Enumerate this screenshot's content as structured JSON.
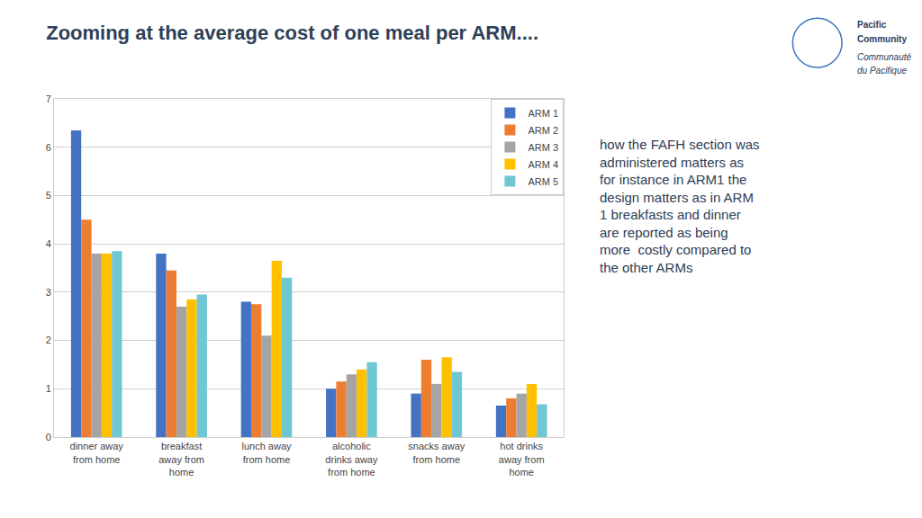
{
  "chart_data": {
    "type": "bar",
    "title": "Zooming at the average cost of one meal per ARM....",
    "categories": [
      "dinner away\nfrom home",
      "breakfast\naway from\nhome",
      "lunch away\nfrom home",
      "alcoholic\ndrinks away\nfrom home",
      "snacks away\nfrom home",
      "hot drinks\naway from\nhome"
    ],
    "series": [
      {
        "name": "ARM 1",
        "color": "#4472c4",
        "values": [
          6.35,
          3.8,
          2.8,
          1.0,
          0.9,
          0.65
        ]
      },
      {
        "name": "ARM 2",
        "color": "#ed7d31",
        "values": [
          4.5,
          3.45,
          2.75,
          1.15,
          1.6,
          0.8
        ]
      },
      {
        "name": "ARM 3",
        "color": "#a5a5a5",
        "values": [
          3.8,
          2.7,
          2.1,
          1.3,
          1.1,
          0.9
        ]
      },
      {
        "name": "ARM 4",
        "color": "#ffc000",
        "values": [
          3.8,
          2.85,
          3.65,
          1.4,
          1.65,
          1.1
        ]
      },
      {
        "name": "ARM 5",
        "color": "#70c7d4",
        "values": [
          3.85,
          2.95,
          3.3,
          1.55,
          1.35,
          0.68
        ]
      }
    ],
    "ylim": [
      0,
      7
    ],
    "yticks": [
      0,
      1,
      2,
      3,
      4,
      5,
      6,
      7
    ],
    "grid": true,
    "legend": "upper right",
    "annotations": [
      "how the FAFH section was\nadministered matters as\nfor instance in ARM1 the\ndesign matters as in ARM\n1 breakfasts and dinner\nare reported as being\nmore  costly compared to\nthe other ARMs",
      "Pacific",
      "Community",
      "Communauté",
      "du Pacifique"
    ]
  }
}
